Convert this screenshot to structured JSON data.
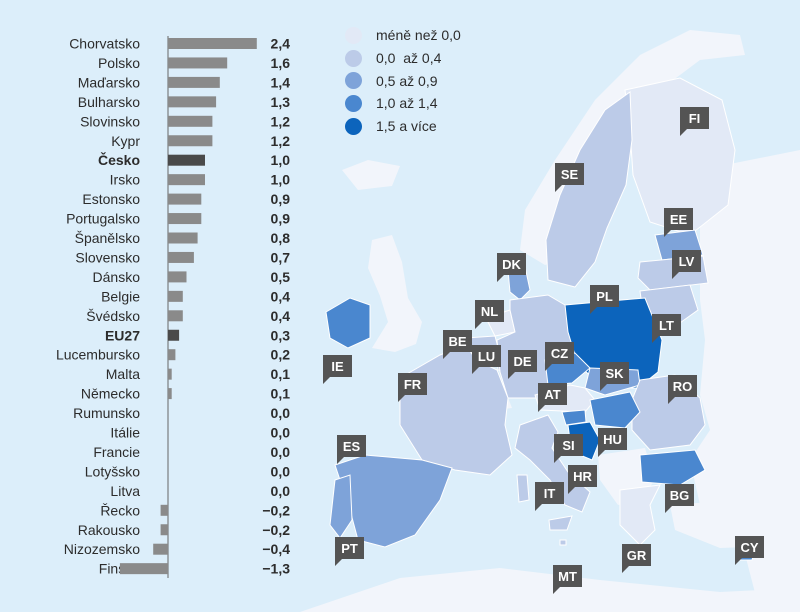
{
  "chart_data": [
    {
      "type": "bar",
      "orientation": "horizontal",
      "categories": [
        "Chorvatsko",
        "Polsko",
        "Maďarsko",
        "Bulharsko",
        "Slovinsko",
        "Kypr",
        "Česko",
        "Irsko",
        "Estonsko",
        "Portugalsko",
        "Španělsko",
        "Slovensko",
        "Dánsko",
        "Belgie",
        "Švédsko",
        "EU27",
        "Lucembursko",
        "Malta",
        "Německo",
        "Rumunsko",
        "Itálie",
        "Francie",
        "Lotyšsko",
        "Litva",
        "Řecko",
        "Rakousko",
        "Nizozemsko",
        "Finsko"
      ],
      "values": [
        2.4,
        1.6,
        1.4,
        1.3,
        1.2,
        1.2,
        1.0,
        1.0,
        0.9,
        0.9,
        0.8,
        0.7,
        0.5,
        0.4,
        0.4,
        0.3,
        0.2,
        0.1,
        0.1,
        0.0,
        0.0,
        0.0,
        0.0,
        0.0,
        -0.2,
        -0.2,
        -0.4,
        -1.3
      ],
      "value_labels": [
        "2,4",
        "1,6",
        "1,4",
        "1,3",
        "1,2",
        "1,2",
        "1,0",
        "1,0",
        "0,9",
        "0,9",
        "0,8",
        "0,7",
        "0,5",
        "0,4",
        "0,4",
        "0,3",
        "0,2",
        "0,1",
        "0,1",
        "0,0",
        "0,0",
        "0,0",
        "0,0",
        "0,0",
        "−0,2",
        "−0,2",
        "−0,4",
        "−1,3"
      ],
      "highlight": [
        "Česko",
        "EU27"
      ],
      "bar_color": "#8a8a8a",
      "highlight_color": "#4a4a4a",
      "title": "",
      "xlabel": "",
      "ylabel": ""
    },
    {
      "type": "choropleth",
      "legend": [
        {
          "label": "méně než 0,0",
          "color": "#e2e9f6"
        },
        {
          "label": "0,0  až 0,4",
          "color": "#bccbe8"
        },
        {
          "label": "0,5 až 0,9",
          "color": "#7ea3d9"
        },
        {
          "label": "1,0 až 1,4",
          "color": "#4a87cf"
        },
        {
          "label": "1,5 a více",
          "color": "#0c64bc"
        }
      ],
      "regions": [
        {
          "code": "FI",
          "class": 0
        },
        {
          "code": "SE",
          "class": 1
        },
        {
          "code": "EE",
          "class": 2
        },
        {
          "code": "LV",
          "class": 1
        },
        {
          "code": "LT",
          "class": 1
        },
        {
          "code": "DK",
          "class": 2
        },
        {
          "code": "PL",
          "class": 4
        },
        {
          "code": "NL",
          "class": 0
        },
        {
          "code": "BE",
          "class": 1
        },
        {
          "code": "LU",
          "class": 1
        },
        {
          "code": "DE",
          "class": 1
        },
        {
          "code": "IE",
          "class": 3
        },
        {
          "code": "CZ",
          "class": 3
        },
        {
          "code": "SK",
          "class": 2
        },
        {
          "code": "AT",
          "class": 0
        },
        {
          "code": "FR",
          "class": 1
        },
        {
          "code": "RO",
          "class": 1
        },
        {
          "code": "HU",
          "class": 3
        },
        {
          "code": "SI",
          "class": 3
        },
        {
          "code": "HR",
          "class": 4
        },
        {
          "code": "ES",
          "class": 2
        },
        {
          "code": "IT",
          "class": 1
        },
        {
          "code": "BG",
          "class": 3
        },
        {
          "code": "PT",
          "class": 2
        },
        {
          "code": "GR",
          "class": 0
        },
        {
          "code": "CY",
          "class": 3
        },
        {
          "code": "MT",
          "class": 1
        }
      ]
    }
  ]
}
